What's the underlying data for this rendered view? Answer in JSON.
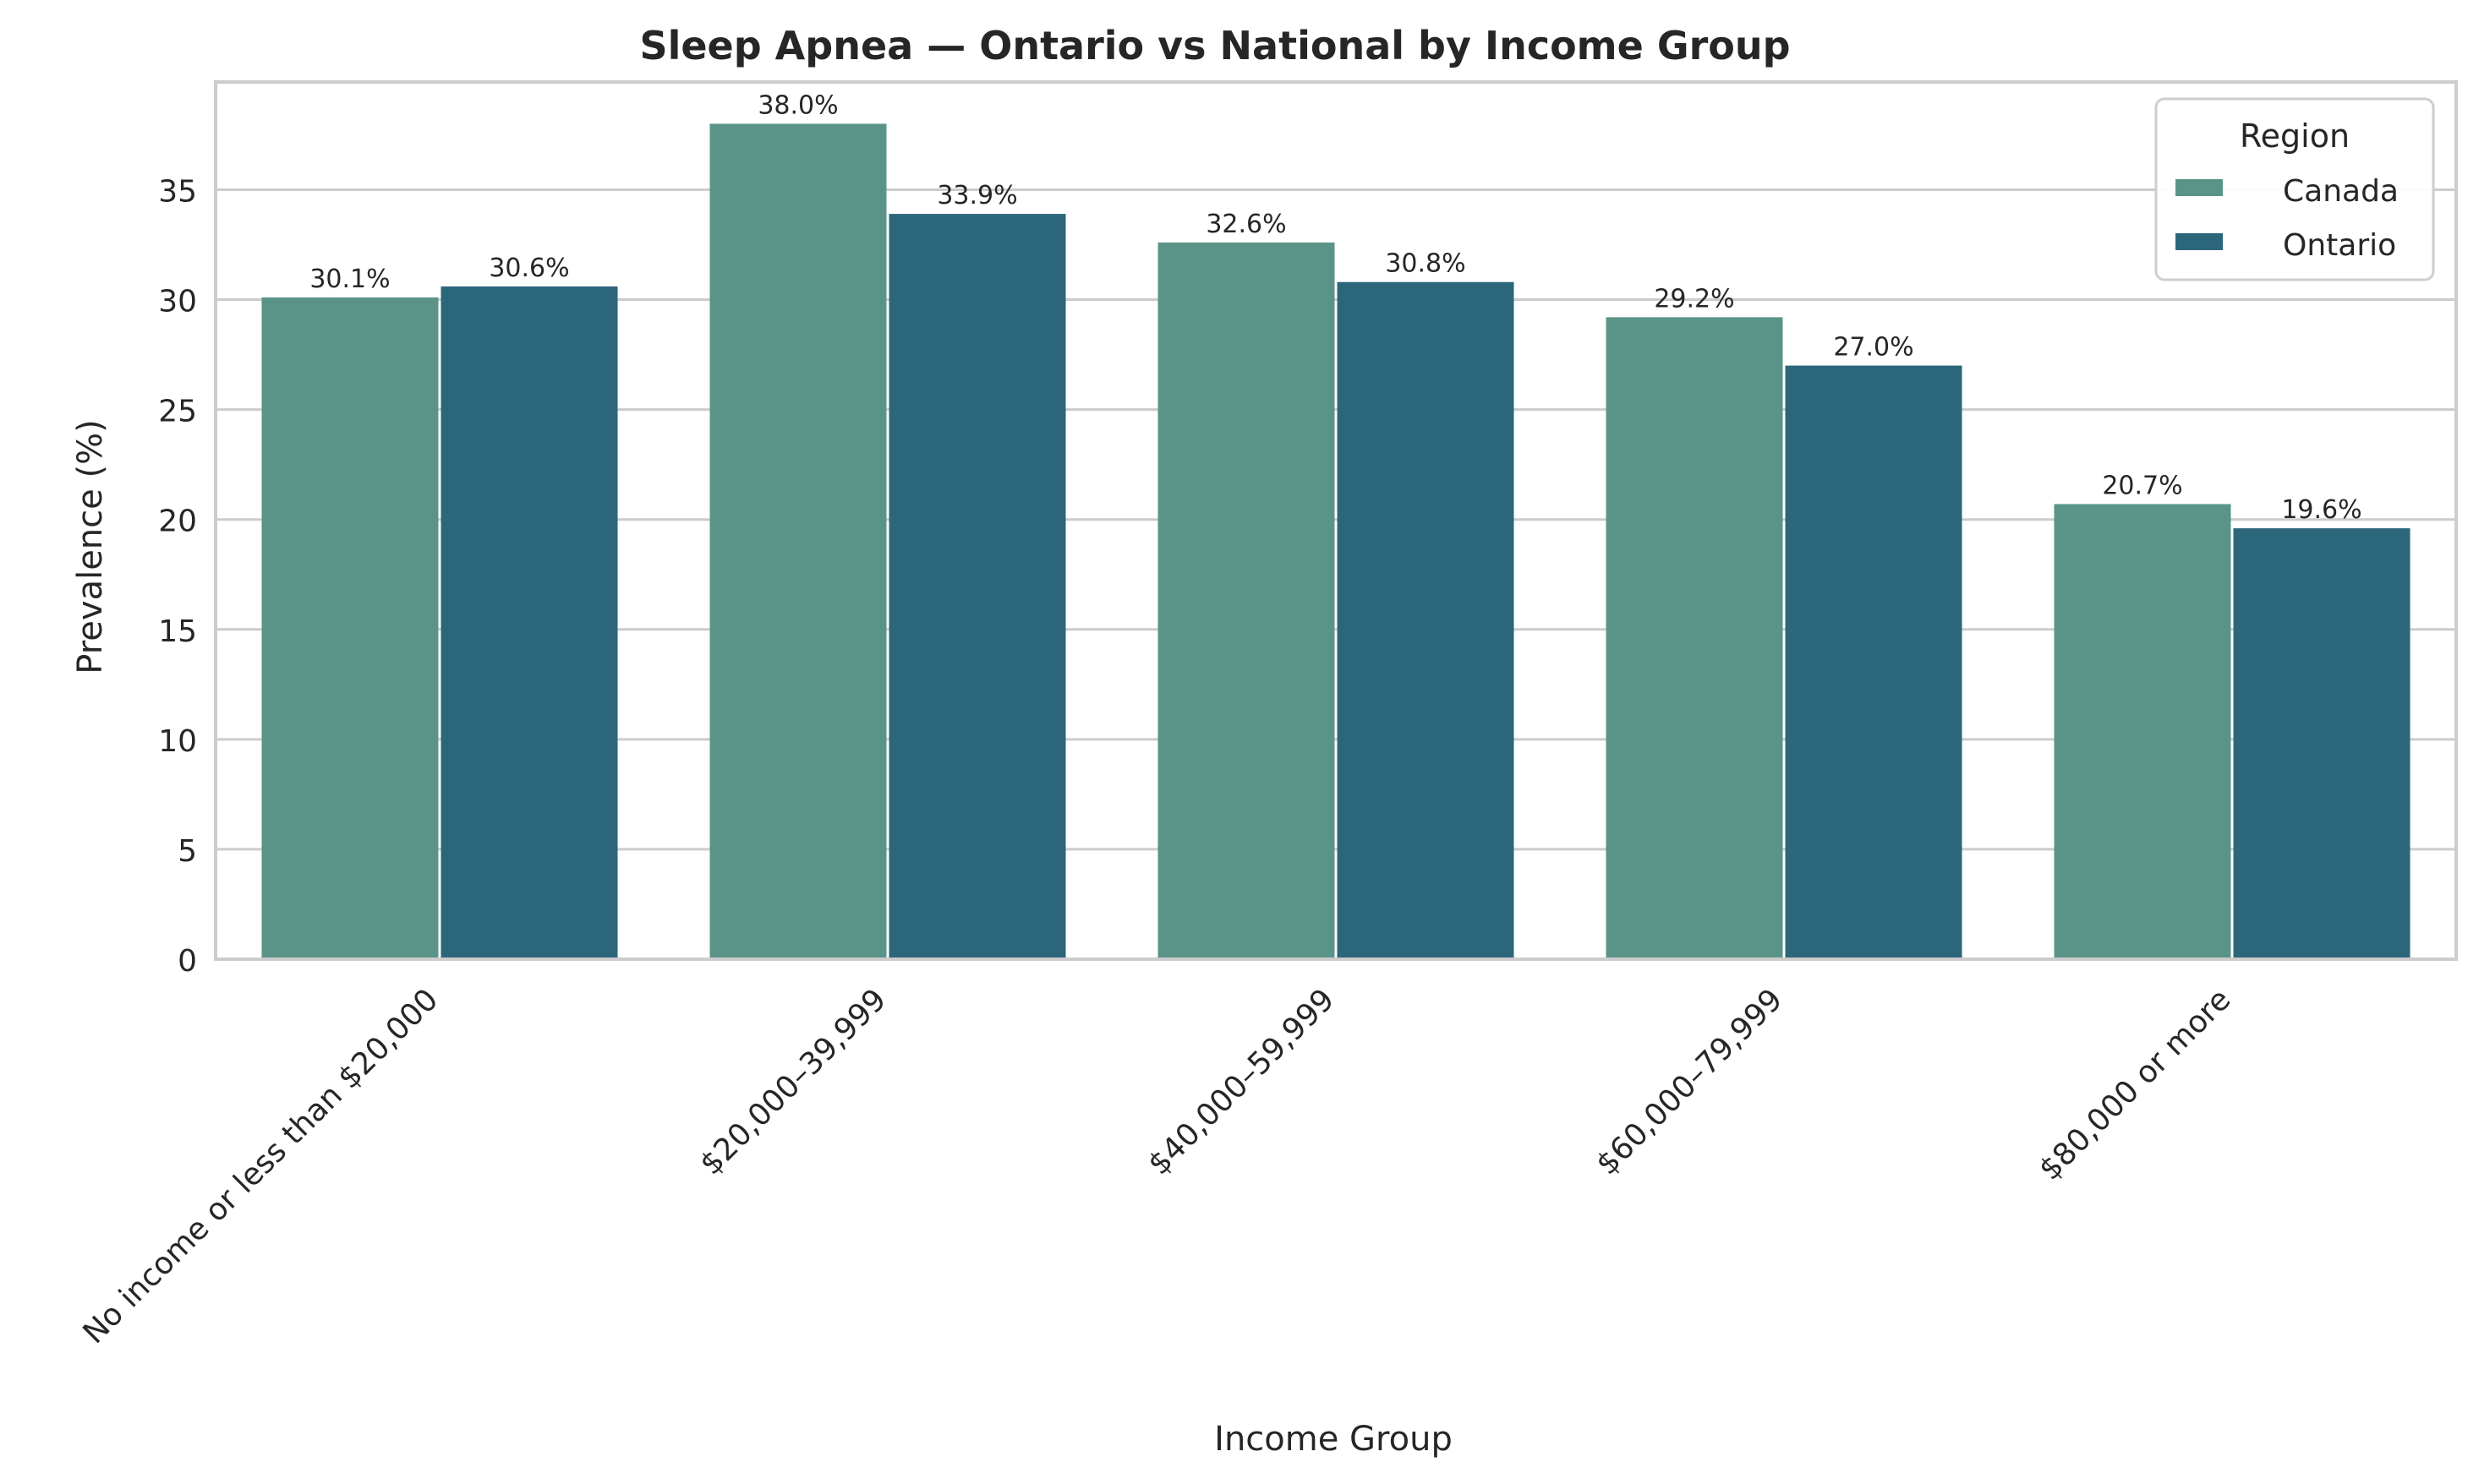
{
  "chart_data": {
    "type": "bar",
    "title": "Sleep Apnea — Ontario vs National by Income Group",
    "xlabel": "Income Group",
    "ylabel": "Prevalence (%)",
    "categories": [
      "No income or less than $20,000",
      "$20,000–39,999",
      "$40,000–59,999",
      "$60,000–79,999",
      "$80,000 or more"
    ],
    "series": [
      {
        "name": "Canada",
        "values": [
          30.1,
          38.0,
          32.6,
          29.2,
          20.7
        ],
        "labels": [
          "30.1%",
          "38.0%",
          "32.6%",
          "29.2%",
          "20.7%"
        ],
        "color": "#5a9488"
      },
      {
        "name": "Ontario",
        "values": [
          30.6,
          33.9,
          30.8,
          27.0,
          19.6
        ],
        "labels": [
          "30.6%",
          "33.9%",
          "30.8%",
          "27.0%",
          "19.6%"
        ],
        "color": "#2c667b"
      }
    ],
    "ylim": [
      0,
      39.9
    ],
    "yticks": [
      0,
      5,
      10,
      15,
      20,
      25,
      30,
      35
    ],
    "grid": "horizontal",
    "legend": {
      "title": "Region",
      "placement": "top-right"
    }
  }
}
